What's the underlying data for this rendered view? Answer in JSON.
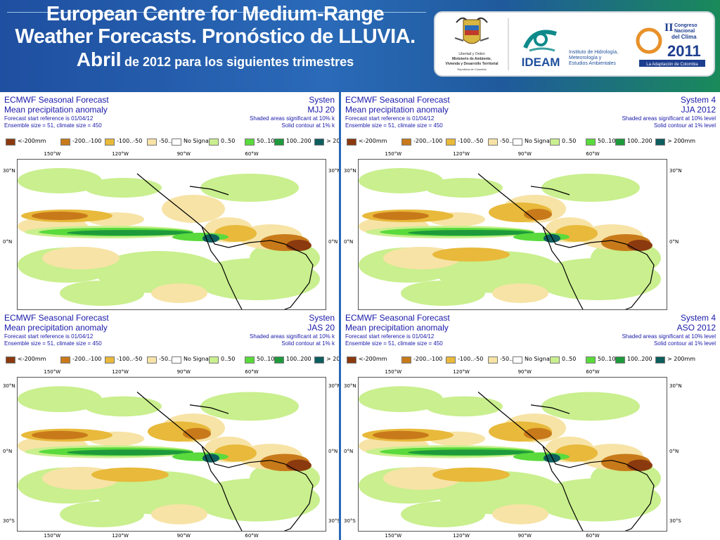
{
  "header": {
    "title_line1": "European Centre for Medium-Range",
    "title_line2": "Weather Forecasts. Pronóstico de LLUVIA.",
    "title_line3_big": "Abril",
    "title_line3_small": "de 2012 para los siguientes trimestres"
  },
  "logos": {
    "ministerio_line1": "Libertad y Orden",
    "ministerio_line2": "Ministerio de Ambiente,",
    "ministerio_line3": "Vivienda y Desarrollo Territorial",
    "ministerio_line4": "República de Colombia",
    "ideam_name": "IDEAM",
    "ideam_desc1": "Instituto de Hidrología,",
    "ideam_desc2": "Meteorología y",
    "ideam_desc3": "Estudios Ambientales",
    "congreso_line1": "II",
    "congreso_line2": "Congreso",
    "congreso_line3": "Nacional",
    "congreso_line4": "del Clima",
    "congreso_year": "2011",
    "congreso_tag": "La Adaptación de Colombia",
    "colors": {
      "ideam_teal": "#0e8a8a",
      "ideam_blue": "#1e4f9c",
      "congreso_orange": "#e8912a",
      "congreso_blue": "#1d3e8f"
    }
  },
  "panels": [
    {
      "title": "ECMWF Seasonal Forecast",
      "subtitle": "Mean precipitation anomaly",
      "start_ref": "Forecast start reference is 01/04/12",
      "ensemble": "Ensemble size = 51, climate size = 450",
      "system": "Systen",
      "period": "MJJ 20",
      "shaded_note": "Shaded areas significant at 10% k",
      "contour_note": "Solid contour at 1% k"
    },
    {
      "title": "ECMWF Seasonal Forecast",
      "subtitle": "Mean precipitation anomaly",
      "start_ref": "Forecast start reference is 01/04/12",
      "ensemble": "Ensemble size = 51, climate size = 450",
      "system": "System 4",
      "period": "JJA 2012",
      "shaded_note": "Shaded areas significant at 10% level",
      "contour_note": "Solid contour at 1% level"
    },
    {
      "title": "ECMWF Seasonal Forecast",
      "subtitle": "Mean precipitation anomaly",
      "start_ref": "Forecast start reference is 01/04/12",
      "ensemble": "Ensemble size = 51, climate size = 450",
      "system": "Systen",
      "period": "JAS 20",
      "shaded_note": "Shaded areas significant at 10% k",
      "contour_note": "Solid contour at 1% k"
    },
    {
      "title": "ECMWF Seasonal Forecast",
      "subtitle": "Mean precipitation anomaly",
      "start_ref": "Forecast start reference is 01/04/12",
      "ensemble": "Ensemble size = 51, climate size = 450",
      "system": "System 4",
      "period": "ASO 2012",
      "shaded_note": "Shaded areas significant at 10% level",
      "contour_note": "Solid contour at 1% level"
    }
  ],
  "legend": [
    {
      "label": "<-200mm",
      "color": "#8b3a0f"
    },
    {
      "label": "-200..-100",
      "color": "#c87a1a"
    },
    {
      "label": "-100..-50",
      "color": "#e8b93a"
    },
    {
      "label": "-50..0",
      "color": "#f7e3a6"
    },
    {
      "label": "No Signal",
      "color": "#ffffff"
    },
    {
      "label": "0..50",
      "color": "#c9ef8e"
    },
    {
      "label": "50..100",
      "color": "#5ada3c"
    },
    {
      "label": "100..200",
      "color": "#1e9a3c"
    },
    {
      "label": "> 200mm",
      "color": "#0e5e5e"
    }
  ],
  "axes": {
    "lon_labels": [
      "150°W",
      "120°W",
      "90°W",
      "60°W"
    ],
    "lat_top": [
      "30°N",
      "0°N"
    ],
    "lat_bottom": [
      "30°N",
      "0°N",
      "30°S"
    ]
  }
}
